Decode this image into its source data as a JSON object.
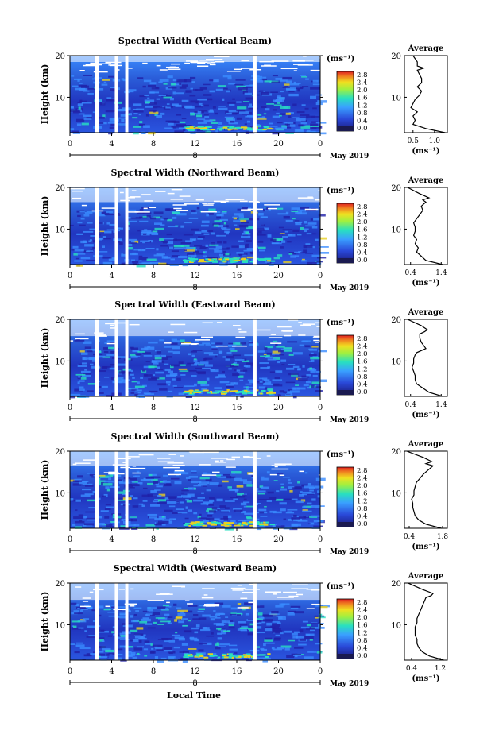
{
  "figure": {
    "xlabel_bottom": "Local Time",
    "date_label": "May 2019",
    "day_label": "8",
    "x_ticks": [
      "0",
      "4",
      "8",
      "12",
      "16",
      "20",
      "0"
    ],
    "y_ticks": [
      "10",
      "20"
    ],
    "ylabel": "Height (km)",
    "unit_label": "(ms⁻¹)",
    "colorbar_ticks": [
      "0.0",
      "0.4",
      "0.8",
      "1.2",
      "1.6",
      "2.0",
      "2.4",
      "2.8"
    ],
    "colors": {
      "low": "#2020a8",
      "mid": "#3a8cff",
      "high": "#28e0c0",
      "peak": "#e8d020",
      "max": "#e02020",
      "gap": "#ffffff"
    }
  },
  "chart_data": [
    {
      "type": "heatmap",
      "title": "Spectral Width (Vertical Beam)",
      "xlabel": "Local Time",
      "ylabel": "Height (km)",
      "xlim": [
        0,
        24
      ],
      "ylim": [
        1.5,
        20
      ],
      "colorbar": {
        "label": "(ms⁻¹)",
        "range": [
          0.0,
          2.8
        ]
      },
      "data_gaps_hours": [
        [
          2.4,
          2.8
        ],
        [
          4.3,
          4.6
        ],
        [
          5.3,
          5.6
        ],
        [
          17.6,
          17.9
        ]
      ],
      "noise_top_km": 20
    },
    {
      "type": "heatmap",
      "title": "Spectral Width (Northward Beam)",
      "xlabel": "Local Time",
      "ylabel": "Height (km)",
      "xlim": [
        0,
        24
      ],
      "ylim": [
        1.5,
        20
      ],
      "colorbar": {
        "label": "(ms⁻¹)",
        "range": [
          0.0,
          2.8
        ]
      },
      "data_gaps_hours": [
        [
          2.4,
          2.8
        ],
        [
          4.3,
          4.6
        ],
        [
          5.3,
          5.6
        ],
        [
          17.6,
          17.9
        ]
      ],
      "noise_top_km": 18
    },
    {
      "type": "heatmap",
      "title": "Spectral Width (Eastward Beam)",
      "xlabel": "Local Time",
      "ylabel": "Height (km)",
      "xlim": [
        0,
        24
      ],
      "ylim": [
        1.5,
        20
      ],
      "colorbar": {
        "label": "(ms⁻¹)",
        "range": [
          0.0,
          2.8
        ]
      },
      "data_gaps_hours": [
        [
          2.4,
          2.8
        ],
        [
          4.3,
          4.6
        ],
        [
          5.3,
          5.6
        ],
        [
          17.6,
          17.9
        ]
      ],
      "noise_top_km": 17.5
    },
    {
      "type": "heatmap",
      "title": "Spectral Width (Southward Beam)",
      "xlabel": "Local Time",
      "ylabel": "Height (km)",
      "xlim": [
        0,
        24
      ],
      "ylim": [
        1.5,
        20
      ],
      "colorbar": {
        "label": "(ms⁻¹)",
        "range": [
          0.0,
          2.8
        ]
      },
      "data_gaps_hours": [
        [
          2.4,
          2.8
        ],
        [
          4.3,
          4.6
        ],
        [
          5.3,
          5.6
        ],
        [
          17.6,
          17.9
        ]
      ],
      "noise_top_km": 18
    },
    {
      "type": "heatmap",
      "title": "Spectral Width (Westward Beam)",
      "xlabel": "Local Time",
      "ylabel": "Height (km)",
      "xlim": [
        0,
        24
      ],
      "ylim": [
        1.5,
        20
      ],
      "colorbar": {
        "label": "(ms⁻¹)",
        "range": [
          0.0,
          2.8
        ]
      },
      "data_gaps_hours": [
        [
          2.4,
          2.8
        ],
        [
          4.3,
          4.6
        ],
        [
          5.3,
          5.6
        ],
        [
          17.6,
          17.9
        ]
      ],
      "noise_top_km": 17.5
    },
    {
      "type": "line",
      "title": "Average",
      "xlabel": "(ms⁻¹)",
      "xticks": [
        "0.5",
        "1.0"
      ],
      "xlim": [
        0.3,
        1.3
      ],
      "ylim": [
        1.5,
        20
      ],
      "series": [
        {
          "x": [
            1.25,
            0.8,
            0.5,
            0.55,
            0.5,
            0.6,
            0.45,
            0.5,
            0.55,
            0.65,
            0.7,
            0.6,
            0.7,
            0.7,
            0.65,
            0.6,
            0.75,
            0.6,
            0.6,
            0.5
          ],
          "y": [
            1.5,
            2.5,
            3.5,
            4.5,
            5.5,
            6.5,
            7.5,
            8.5,
            9.5,
            10.5,
            11.5,
            12.5,
            13.5,
            14.5,
            15.5,
            16.5,
            17.0,
            17.5,
            18.5,
            20
          ]
        }
      ]
    },
    {
      "type": "line",
      "title": "Average",
      "xlabel": "(ms⁻¹)",
      "xticks": [
        "0.4",
        "1.4"
      ],
      "xlim": [
        0.2,
        1.6
      ],
      "ylim": [
        1.5,
        20
      ],
      "series": [
        {
          "x": [
            1.45,
            0.9,
            0.75,
            0.6,
            0.65,
            0.55,
            0.6,
            0.5,
            0.55,
            0.55,
            0.5,
            0.6,
            0.7,
            0.8,
            0.75,
            0.9,
            0.8,
            1.0,
            0.7,
            0.3
          ],
          "y": [
            1.5,
            2.5,
            3.5,
            4.5,
            5.5,
            6.5,
            7.5,
            8.5,
            9.5,
            10.5,
            11.5,
            12.5,
            13.5,
            14.5,
            15.5,
            16.5,
            17.0,
            17.5,
            18.5,
            20
          ]
        }
      ]
    },
    {
      "type": "line",
      "title": "Average",
      "xlabel": "(ms⁻¹)",
      "xticks": [
        "0.4",
        "1.4"
      ],
      "xlim": [
        0.2,
        1.6
      ],
      "ylim": [
        1.5,
        20
      ],
      "series": [
        {
          "x": [
            1.45,
            1.0,
            0.8,
            0.6,
            0.55,
            0.55,
            0.5,
            0.45,
            0.5,
            0.5,
            0.55,
            0.6,
            0.9,
            0.75,
            0.7,
            0.7,
            0.85,
            0.95,
            0.75,
            0.3
          ],
          "y": [
            1.5,
            2.5,
            3.5,
            4.5,
            5.5,
            6.5,
            7.5,
            8.5,
            9.5,
            10.5,
            11.5,
            12.0,
            13.0,
            14.5,
            15.5,
            16.5,
            17.0,
            17.5,
            18.5,
            20
          ]
        }
      ]
    },
    {
      "type": "line",
      "title": "Average",
      "xlabel": "(ms⁻¹)",
      "xticks": [
        "0.4",
        "1.8"
      ],
      "xlim": [
        0.2,
        2.0
      ],
      "ylim": [
        1.5,
        20
      ],
      "series": [
        {
          "x": [
            1.75,
            1.1,
            0.8,
            0.65,
            0.6,
            0.55,
            0.55,
            0.5,
            0.6,
            0.6,
            0.65,
            0.7,
            0.85,
            1.0,
            1.2,
            1.4,
            1.1,
            1.35,
            1.0,
            0.3
          ],
          "y": [
            1.5,
            2.5,
            3.5,
            4.5,
            5.5,
            6.5,
            7.5,
            8.5,
            9.5,
            10.5,
            11.5,
            12.5,
            13.5,
            14.5,
            15.5,
            16.5,
            17.0,
            17.5,
            18.5,
            20
          ]
        }
      ]
    },
    {
      "type": "line",
      "title": "Average",
      "xlabel": "(ms⁻¹)",
      "xticks": [
        "0.4",
        "1.2"
      ],
      "xlim": [
        0.2,
        1.4
      ],
      "ylim": [
        1.5,
        20
      ],
      "series": [
        {
          "x": [
            1.3,
            0.9,
            0.7,
            0.6,
            0.55,
            0.55,
            0.5,
            0.5,
            0.5,
            0.55,
            0.55,
            0.6,
            0.65,
            0.7,
            0.75,
            0.8,
            0.95,
            1.0,
            0.7,
            0.3
          ],
          "y": [
            1.5,
            2.5,
            3.5,
            4.5,
            5.5,
            6.5,
            7.5,
            8.5,
            9.5,
            10.5,
            11.5,
            12.5,
            13.5,
            14.5,
            15.5,
            16.5,
            17.0,
            17.5,
            18.5,
            20
          ]
        }
      ]
    }
  ]
}
